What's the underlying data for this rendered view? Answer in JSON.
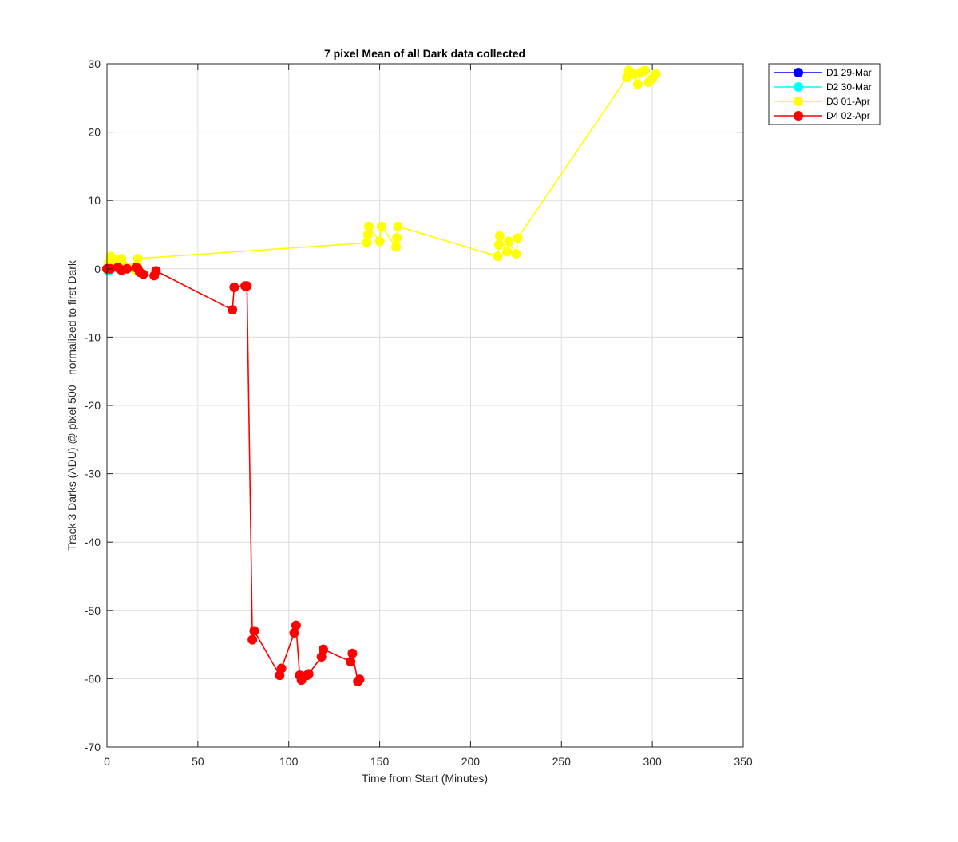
{
  "chart_data": {
    "type": "line",
    "title": "7 pixel Mean of all Dark data collected",
    "xlabel": "Time from Start (Minutes)",
    "ylabel": "Track 3 Darks (ADU) @ pixel 500 - normalized to first Dark",
    "xlim": [
      0,
      350
    ],
    "ylim": [
      -70,
      30
    ],
    "xticks": [
      0,
      50,
      100,
      150,
      200,
      250,
      300,
      350
    ],
    "yticks": [
      -70,
      -60,
      -50,
      -40,
      -30,
      -20,
      -10,
      0,
      10,
      20,
      30
    ],
    "grid": true,
    "legend_position": "outside-top-right",
    "series": [
      {
        "name": "D1 29-Mar",
        "color": "#0000ff",
        "marker": "circle",
        "x": [
          0
        ],
        "y": [
          0
        ]
      },
      {
        "name": "D2 30-Mar",
        "color": "#00ffff",
        "marker": "circle",
        "x": [
          0.5,
          1.0
        ],
        "y": [
          -0.2,
          -0.3
        ]
      },
      {
        "name": "D3 01-Apr",
        "color": "#ffff00",
        "marker": "circle",
        "x": [
          0,
          1,
          2,
          2.5,
          3,
          3.5,
          4,
          5,
          6,
          7,
          8,
          9,
          10,
          11,
          12,
          16,
          16.5,
          17,
          143,
          143.5,
          144,
          150,
          151,
          159,
          159.5,
          160,
          215,
          215.5,
          216,
          220,
          221,
          225,
          226,
          286,
          287,
          288,
          290,
          292,
          294,
          296,
          298,
          300,
          302
        ],
        "y": [
          0,
          1,
          1.8,
          0.5,
          1.5,
          0.3,
          1.2,
          0.5,
          0.8,
          0.2,
          1.5,
          0.5,
          0.3,
          0,
          0.2,
          -0.3,
          0.5,
          1.5,
          3.8,
          5,
          6.2,
          4,
          6.2,
          3.2,
          4.5,
          6.2,
          1.8,
          3.5,
          4.8,
          2.5,
          4,
          2.2,
          4.5,
          28,
          29,
          28.5,
          28.5,
          27,
          28.8,
          29,
          27.3,
          27.8,
          28.5
        ]
      },
      {
        "name": "D4 02-Apr",
        "color": "#ff0000",
        "marker": "circle",
        "x": [
          0,
          1,
          2,
          6,
          7,
          8,
          11,
          16,
          17,
          18,
          20,
          26,
          27,
          69,
          70,
          76,
          77,
          80,
          81,
          95,
          96,
          103,
          104,
          106,
          107,
          110,
          111,
          118,
          119,
          134,
          135,
          138,
          139
        ],
        "y": [
          0,
          0,
          0,
          0.2,
          0,
          -0.2,
          0,
          0.2,
          0,
          -0.5,
          -0.8,
          -1,
          -0.3,
          -6,
          -2.7,
          -2.5,
          -2.5,
          -54.3,
          -53,
          -59.5,
          -58.5,
          -53.3,
          -52.2,
          -59.5,
          -60.2,
          -59.5,
          -59.3,
          -56.8,
          -55.7,
          -57.5,
          -56.3,
          -60.4,
          -60.1
        ]
      }
    ]
  }
}
